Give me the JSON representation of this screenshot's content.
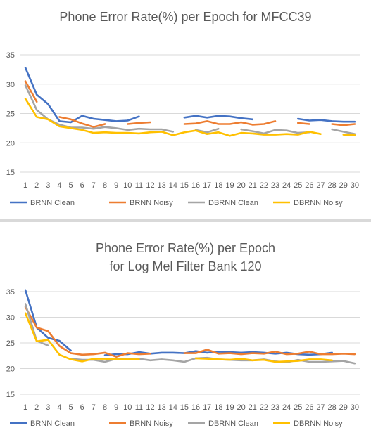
{
  "colors": {
    "brnn_clean": "#4472C4",
    "brnn_noisy": "#ED7D31",
    "dbrnn_clean": "#A5A5A5",
    "dbrnn_noisy": "#FFC000"
  },
  "chart_data": [
    {
      "type": "line",
      "title": "Phone Error Rate(%) per Epoch for MFCC39",
      "title_lines": [
        "Phone Error Rate(%) per Epoch for MFCC39"
      ],
      "categories": [
        1,
        2,
        3,
        4,
        5,
        6,
        7,
        8,
        9,
        10,
        11,
        12,
        13,
        14,
        15,
        16,
        17,
        18,
        19,
        20,
        21,
        22,
        23,
        24,
        25,
        26,
        27,
        28,
        29,
        30
      ],
      "y_ticks": [
        15,
        20,
        25,
        30,
        35
      ],
      "ylim": [
        15,
        35
      ],
      "grid": true,
      "legend_position": "bottom",
      "series": [
        {
          "name": "BRNN Clean",
          "color_key": "brnn_clean",
          "values": [
            32.8,
            28.2,
            26.6,
            23.7,
            23.5,
            24.6,
            24.1,
            23.9,
            23.7,
            23.8,
            24.5,
            null,
            null,
            null,
            24.3,
            24.6,
            24.3,
            24.6,
            24.5,
            24.2,
            24.0,
            null,
            null,
            null,
            24.1,
            23.8,
            23.9,
            23.7,
            23.6,
            23.6
          ]
        },
        {
          "name": "BRNN Noisy",
          "color_key": "brnn_noisy",
          "values": [
            30.5,
            27.0,
            null,
            24.4,
            24.0,
            23.3,
            22.7,
            23.2,
            null,
            23.2,
            23.4,
            23.5,
            null,
            null,
            23.2,
            23.3,
            23.7,
            23.2,
            23.2,
            23.5,
            23.1,
            23.2,
            23.7,
            null,
            23.4,
            23.2,
            null,
            23.2,
            23.0,
            23.2
          ]
        },
        {
          "name": "DBRNN Clean",
          "color_key": "dbrnn_clean",
          "values": [
            29.8,
            25.6,
            24.0,
            23.1,
            22.6,
            22.6,
            22.4,
            22.7,
            22.5,
            22.2,
            22.4,
            22.3,
            22.3,
            21.9,
            null,
            22.2,
            21.8,
            22.4,
            null,
            22.3,
            22.0,
            21.6,
            22.2,
            22.1,
            21.7,
            21.8,
            null,
            22.3,
            21.9,
            21.5
          ]
        },
        {
          "name": "DBRNN Noisy",
          "color_key": "dbrnn_noisy",
          "values": [
            27.5,
            24.4,
            24.0,
            22.8,
            22.5,
            22.2,
            21.7,
            21.8,
            21.7,
            21.7,
            21.6,
            21.8,
            21.9,
            21.3,
            21.8,
            22.1,
            21.5,
            21.8,
            21.2,
            21.7,
            21.6,
            21.4,
            21.4,
            21.5,
            21.4,
            21.9,
            21.5,
            null,
            21.4,
            21.3
          ]
        }
      ]
    },
    {
      "type": "line",
      "title": "Phone Error Rate(%) per Epoch for Log Mel Filter Bank 120",
      "title_lines": [
        "Phone Error Rate(%) per Epoch",
        "for Log Mel Filter Bank 120"
      ],
      "categories": [
        1,
        2,
        3,
        4,
        5,
        6,
        7,
        8,
        9,
        10,
        11,
        12,
        13,
        14,
        15,
        16,
        17,
        18,
        19,
        20,
        21,
        22,
        23,
        24,
        25,
        26,
        27,
        28,
        29,
        30
      ],
      "y_ticks": [
        15,
        20,
        25,
        30,
        35
      ],
      "ylim": [
        15,
        35
      ],
      "grid": true,
      "legend_position": "bottom",
      "series": [
        {
          "name": "BRNN Clean",
          "color_key": "brnn_clean",
          "values": [
            35.3,
            28.0,
            26.0,
            25.4,
            23.5,
            null,
            null,
            22.6,
            22.8,
            22.8,
            23.2,
            22.9,
            23.1,
            23.1,
            23.0,
            23.4,
            23.1,
            23.3,
            23.2,
            23.1,
            23.2,
            23.1,
            22.9,
            23.1,
            22.8,
            22.7,
            22.8,
            23.1,
            null,
            null
          ]
        },
        {
          "name": "BRNN Noisy",
          "color_key": "brnn_noisy",
          "values": [
            32.0,
            28.0,
            27.3,
            24.4,
            23.0,
            22.7,
            22.8,
            23.1,
            22.3,
            23.0,
            22.8,
            22.9,
            null,
            null,
            23.0,
            23.0,
            23.7,
            22.9,
            23.0,
            22.8,
            23.0,
            22.9,
            23.3,
            22.8,
            22.9,
            23.3,
            22.8,
            22.8,
            22.9,
            22.8
          ]
        },
        {
          "name": "DBRNN Clean",
          "color_key": "dbrnn_clean",
          "values": [
            32.6,
            25.4,
            24.5,
            null,
            21.9,
            21.7,
            21.7,
            21.3,
            21.9,
            21.8,
            21.9,
            21.6,
            21.8,
            21.6,
            21.3,
            22.0,
            22.1,
            21.8,
            21.7,
            21.6,
            21.6,
            21.8,
            21.4,
            21.2,
            21.7,
            21.3,
            21.3,
            21.4,
            21.5,
            21.0
          ]
        },
        {
          "name": "DBRNN Noisy",
          "color_key": "dbrnn_noisy",
          "values": [
            30.8,
            25.3,
            25.6,
            22.7,
            21.8,
            21.4,
            21.9,
            21.9,
            21.8,
            21.8,
            21.8,
            null,
            null,
            null,
            null,
            22.0,
            21.9,
            21.8,
            21.7,
            21.9,
            21.6,
            21.7,
            21.3,
            21.4,
            21.5,
            21.8,
            21.8,
            21.6,
            null,
            null
          ]
        }
      ]
    }
  ]
}
